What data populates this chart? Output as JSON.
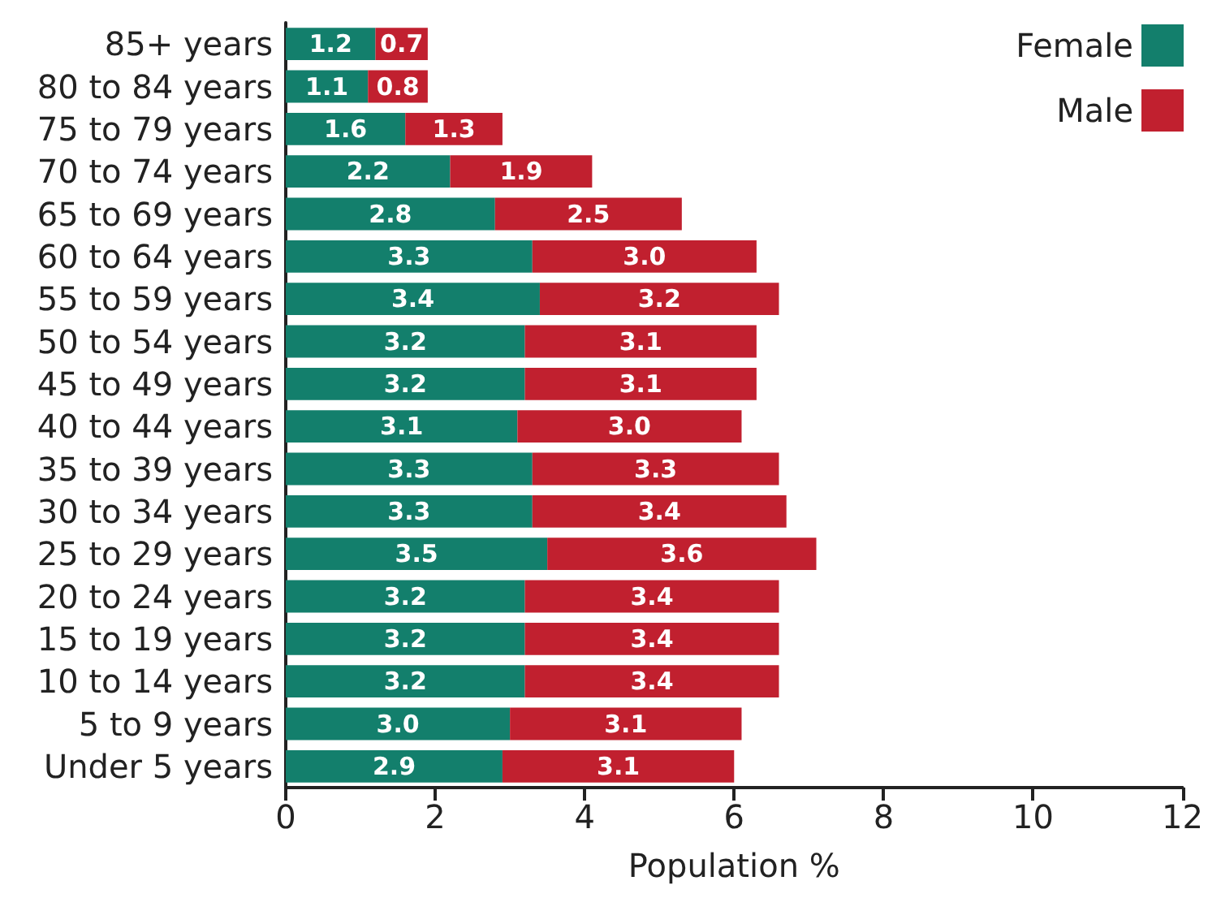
{
  "chart_data": {
    "type": "bar",
    "orientation": "horizontal",
    "stacked": true,
    "xlabel": "Population %",
    "categories": [
      "85+ years",
      "80 to 84 years",
      "75 to 79 years",
      "70 to 74 years",
      "65 to 69 years",
      "60 to 64 years",
      "55 to 59 years",
      "50 to 54 years",
      "45 to 49 years",
      "40 to 44 years",
      "35 to 39 years",
      "30 to 34 years",
      "25 to 29 years",
      "20 to 24 years",
      "15 to 19 years",
      "10 to 14 years",
      "5 to 9 years",
      "Under 5 years"
    ],
    "series": [
      {
        "name": "Female",
        "color": "#137f6c",
        "values": [
          1.2,
          1.1,
          1.6,
          2.2,
          2.8,
          3.3,
          3.4,
          3.2,
          3.2,
          3.1,
          3.3,
          3.3,
          3.5,
          3.2,
          3.2,
          3.2,
          3.0,
          2.9
        ],
        "value_labels": [
          "1.2",
          "1.1",
          "1.6",
          "2.2",
          "2.8",
          "3.3",
          "3.4",
          "3.2",
          "3.2",
          "3.1",
          "3.3",
          "3.3",
          "3.5",
          "3.2",
          "3.2",
          "3.2",
          "3.0",
          "2.9"
        ]
      },
      {
        "name": "Male",
        "color": "#c1202f",
        "values": [
          0.7,
          0.8,
          1.3,
          1.9,
          2.5,
          3.0,
          3.2,
          3.1,
          3.1,
          3.0,
          3.3,
          3.4,
          3.6,
          3.4,
          3.4,
          3.4,
          3.1,
          3.1
        ],
        "value_labels": [
          "0.7",
          "0.8",
          "1.3",
          "1.9",
          "2.5",
          "3.0",
          "3.2",
          "3.1",
          "3.1",
          "3.0",
          "3.3",
          "3.4",
          "3.6",
          "3.4",
          "3.4",
          "3.4",
          "3.1",
          "3.1"
        ]
      }
    ],
    "xlim": [
      0,
      12
    ],
    "xticks": [
      0,
      2,
      4,
      6,
      8,
      10,
      12
    ],
    "grid": false,
    "legend": "top right"
  }
}
